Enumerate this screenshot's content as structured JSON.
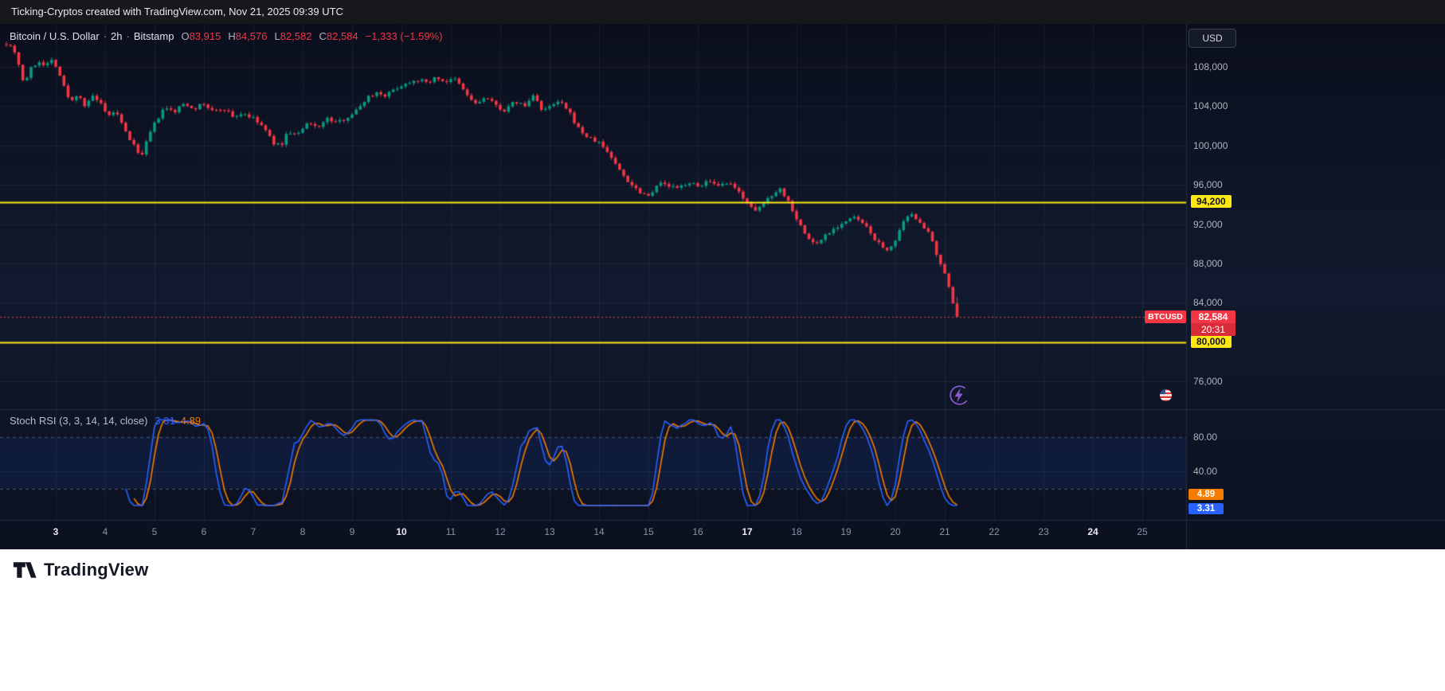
{
  "topbar": {
    "text": "Ticking-Cryptos created with TradingView.com, Nov 21, 2025 09:39 UTC"
  },
  "header": {
    "symbol_title": "Bitcoin / U.S. Dollar",
    "sep": "·",
    "interval": "2h",
    "exchange": "Bitstamp",
    "ohlc": {
      "o_label": "O",
      "o": "83,915",
      "h_label": "H",
      "h": "84,576",
      "l_label": "L",
      "l": "82,582",
      "c_label": "C",
      "c": "82,584",
      "change": "−1,333 (−1.59%)"
    },
    "currency_button": "USD"
  },
  "price_scale": {
    "price_tag": {
      "symbol": "BTCUSD",
      "price": "82,584",
      "countdown": "20:31",
      "color": "#f23645"
    },
    "level_tags": [
      {
        "price": 94200,
        "label": "94,200",
        "color": "#ffe714"
      },
      {
        "price": 80000,
        "label": "80,000",
        "color": "#ffe714"
      }
    ]
  },
  "indicator": {
    "title": "Stoch RSI (3, 3, 14, 14, close)",
    "k_value": "3.31",
    "d_value": "4.89",
    "k_color": "#2962ff",
    "d_color": "#f57c00",
    "ticks": [
      {
        "v": 80,
        "label": "80.00"
      },
      {
        "v": 40,
        "label": "40.00"
      }
    ],
    "bands": [
      80,
      20
    ]
  },
  "icons": {
    "flash": "purple lightning bolt in circle",
    "us_flag": "US flag roundel marker",
    "logo_mark": "TradingView TV mark"
  },
  "footer": {
    "brand": "TradingView"
  },
  "chart_data": {
    "type": "candlestick",
    "symbol": "BTCUSD",
    "title": "Bitcoin / U.S. Dollar",
    "interval": "2h",
    "exchange": "Bitstamp",
    "up_color": "#089981",
    "down_color": "#f23645",
    "last": {
      "open": 83915,
      "high": 84576,
      "low": 82582,
      "close": 82584,
      "change": -1333,
      "change_pct": -1.59
    },
    "y_axis": {
      "visible_range": [
        73328,
        112374
      ],
      "ticks": [
        {
          "price": 108000,
          "label": "108,000"
        },
        {
          "price": 104000,
          "label": "104,000"
        },
        {
          "price": 100000,
          "label": "100,000"
        },
        {
          "price": 96000,
          "label": "96,000"
        },
        {
          "price": 92000,
          "label": "92,000"
        },
        {
          "price": 88000,
          "label": "88,000"
        },
        {
          "price": 84000,
          "label": "84,000"
        },
        {
          "price": 76000,
          "label": "76,000"
        }
      ]
    },
    "x_axis": {
      "unit": "day of Nov 2025",
      "data_range": [
        2.0,
        21.3333
      ],
      "days": [
        {
          "d": 3,
          "label": "3",
          "bold": true
        },
        {
          "d": 4,
          "label": "4",
          "bold": false
        },
        {
          "d": 5,
          "label": "5",
          "bold": false
        },
        {
          "d": 6,
          "label": "6",
          "bold": false
        },
        {
          "d": 7,
          "label": "7",
          "bold": false
        },
        {
          "d": 8,
          "label": "8",
          "bold": false
        },
        {
          "d": 9,
          "label": "9",
          "bold": false
        },
        {
          "d": 10,
          "label": "10",
          "bold": true
        },
        {
          "d": 11,
          "label": "11",
          "bold": false
        },
        {
          "d": 12,
          "label": "12",
          "bold": false
        },
        {
          "d": 13,
          "label": "13",
          "bold": false
        },
        {
          "d": 14,
          "label": "14",
          "bold": false
        },
        {
          "d": 15,
          "label": "15",
          "bold": false
        },
        {
          "d": 16,
          "label": "16",
          "bold": false
        },
        {
          "d": 17,
          "label": "17",
          "bold": true
        },
        {
          "d": 18,
          "label": "18",
          "bold": false
        },
        {
          "d": 19,
          "label": "19",
          "bold": false
        },
        {
          "d": 20,
          "label": "20",
          "bold": false
        },
        {
          "d": 21,
          "label": "21",
          "bold": false
        },
        {
          "d": 22,
          "label": "22",
          "bold": false
        },
        {
          "d": 23,
          "label": "23",
          "bold": false
        },
        {
          "d": 24,
          "label": "24",
          "bold": true
        },
        {
          "d": 25,
          "label": "25",
          "bold": false
        }
      ]
    },
    "horizontal_lines": [
      {
        "price": 94200,
        "color": "#ffe714",
        "style": "solid",
        "role": "support-resistance"
      },
      {
        "price": 80000,
        "color": "#ffe714",
        "style": "solid",
        "role": "support-resistance"
      },
      {
        "price": 82584,
        "color": "#f23645",
        "style": "dotted",
        "role": "last-price"
      }
    ],
    "candle_step_days": 0.0833333,
    "price_path_anchors": [
      [
        2.0,
        110400
      ],
      [
        2.1,
        110100
      ],
      [
        2.2,
        109300
      ],
      [
        2.35,
        106300
      ],
      [
        2.5,
        107800
      ],
      [
        2.65,
        108600
      ],
      [
        2.8,
        108200
      ],
      [
        2.95,
        108800
      ],
      [
        3.05,
        107600
      ],
      [
        3.15,
        106200
      ],
      [
        3.3,
        104300
      ],
      [
        3.45,
        105400
      ],
      [
        3.6,
        103900
      ],
      [
        3.75,
        105000
      ],
      [
        3.9,
        104300
      ],
      [
        4.05,
        102800
      ],
      [
        4.2,
        103600
      ],
      [
        4.4,
        101500
      ],
      [
        4.6,
        99800
      ],
      [
        4.75,
        99000
      ],
      [
        4.9,
        101200
      ],
      [
        5.05,
        102600
      ],
      [
        5.2,
        103800
      ],
      [
        5.4,
        103400
      ],
      [
        5.6,
        104300
      ],
      [
        5.8,
        103800
      ],
      [
        6.0,
        104200
      ],
      [
        6.2,
        103400
      ],
      [
        6.4,
        103800
      ],
      [
        6.6,
        102900
      ],
      [
        6.8,
        103300
      ],
      [
        7.0,
        102700
      ],
      [
        7.2,
        101900
      ],
      [
        7.4,
        100300
      ],
      [
        7.55,
        99900
      ],
      [
        7.7,
        101400
      ],
      [
        7.9,
        101100
      ],
      [
        8.1,
        102200
      ],
      [
        8.3,
        101900
      ],
      [
        8.5,
        102700
      ],
      [
        8.7,
        102300
      ],
      [
        8.9,
        102900
      ],
      [
        9.1,
        103600
      ],
      [
        9.3,
        104900
      ],
      [
        9.5,
        105400
      ],
      [
        9.7,
        105100
      ],
      [
        9.9,
        105900
      ],
      [
        10.1,
        106300
      ],
      [
        10.3,
        106800
      ],
      [
        10.5,
        106400
      ],
      [
        10.7,
        106900
      ],
      [
        10.9,
        106500
      ],
      [
        11.1,
        106700
      ],
      [
        11.3,
        105300
      ],
      [
        11.5,
        104200
      ],
      [
        11.7,
        104900
      ],
      [
        11.9,
        104100
      ],
      [
        12.1,
        103500
      ],
      [
        12.3,
        104500
      ],
      [
        12.5,
        104000
      ],
      [
        12.7,
        105300
      ],
      [
        12.85,
        103400
      ],
      [
        13.0,
        103900
      ],
      [
        13.2,
        104500
      ],
      [
        13.4,
        103300
      ],
      [
        13.6,
        101600
      ],
      [
        13.8,
        100700
      ],
      [
        14.0,
        100300
      ],
      [
        14.2,
        99200
      ],
      [
        14.4,
        97600
      ],
      [
        14.6,
        96300
      ],
      [
        14.8,
        95400
      ],
      [
        15.0,
        94900
      ],
      [
        15.2,
        96200
      ],
      [
        15.4,
        95900
      ],
      [
        15.6,
        95600
      ],
      [
        15.8,
        96300
      ],
      [
        16.0,
        95800
      ],
      [
        16.2,
        96400
      ],
      [
        16.4,
        95700
      ],
      [
        16.6,
        96200
      ],
      [
        16.8,
        95400
      ],
      [
        17.0,
        94300
      ],
      [
        17.15,
        93100
      ],
      [
        17.3,
        94000
      ],
      [
        17.5,
        95000
      ],
      [
        17.65,
        95700
      ],
      [
        17.85,
        94200
      ],
      [
        18.0,
        92600
      ],
      [
        18.2,
        90700
      ],
      [
        18.4,
        89900
      ],
      [
        18.6,
        91000
      ],
      [
        18.8,
        91700
      ],
      [
        19.0,
        92300
      ],
      [
        19.2,
        92700
      ],
      [
        19.4,
        91700
      ],
      [
        19.6,
        90400
      ],
      [
        19.8,
        89200
      ],
      [
        20.0,
        90300
      ],
      [
        20.2,
        92500
      ],
      [
        20.35,
        92900
      ],
      [
        20.5,
        92300
      ],
      [
        20.7,
        90800
      ],
      [
        20.85,
        88600
      ],
      [
        21.0,
        86800
      ],
      [
        21.1,
        85400
      ],
      [
        21.2,
        84200
      ],
      [
        21.28,
        83900
      ],
      [
        21.3333,
        82584
      ]
    ],
    "stoch_rsi": {
      "params": [
        3,
        3,
        14,
        14
      ],
      "source": "close",
      "k": 3.31,
      "d": 4.89,
      "bands": [
        80,
        20
      ]
    }
  }
}
